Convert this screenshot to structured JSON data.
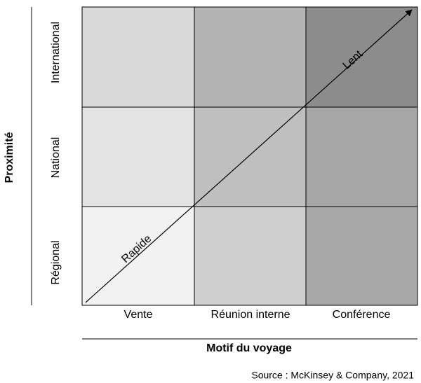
{
  "y_axis": {
    "title": "Proximité",
    "labels": [
      "Régional",
      "National",
      "International"
    ]
  },
  "x_axis": {
    "title": "Motif du voyage",
    "labels": [
      "Vente",
      "Réunion interne",
      "Conférence"
    ]
  },
  "arrow": {
    "start_label": "Rapide",
    "end_label": "Lent"
  },
  "source": "Source : McKinsey & Company, 2021"
}
